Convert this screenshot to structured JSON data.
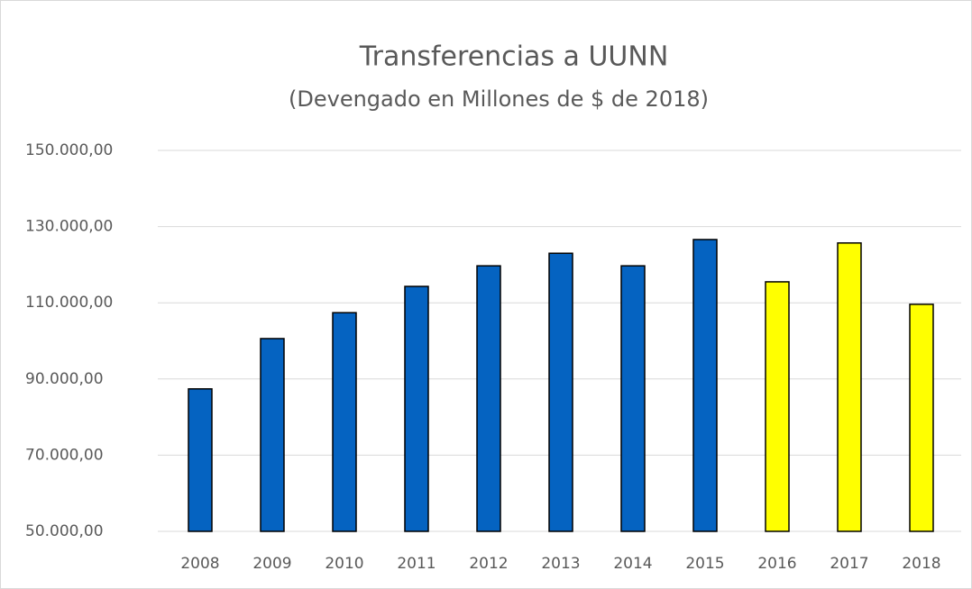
{
  "chart_data": {
    "type": "bar",
    "title": "Transferencias a UUNN",
    "subtitle": "(Devengado en Millones de $ de 2018)",
    "categories": [
      "2008",
      "2009",
      "2010",
      "2011",
      "2012",
      "2013",
      "2014",
      "2015",
      "2016",
      "2017",
      "2018"
    ],
    "values": [
      87400,
      100600,
      107400,
      114300,
      119700,
      123000,
      119700,
      126600,
      115500,
      125700,
      109600
    ],
    "colors": [
      "#0563c1",
      "#0563c1",
      "#0563c1",
      "#0563c1",
      "#0563c1",
      "#0563c1",
      "#0563c1",
      "#0563c1",
      "#ffff00",
      "#ffff00",
      "#ffff00"
    ],
    "ylim": [
      50000,
      150000
    ],
    "yticks": [
      {
        "value": 50000,
        "label": "50.000,00"
      },
      {
        "value": 70000,
        "label": "70.000,00"
      },
      {
        "value": 90000,
        "label": "90.000,00"
      },
      {
        "value": 110000,
        "label": "110.000,00"
      },
      {
        "value": 130000,
        "label": "130.000,00"
      },
      {
        "value": 150000,
        "label": "150.000,00"
      }
    ],
    "grid": true
  }
}
